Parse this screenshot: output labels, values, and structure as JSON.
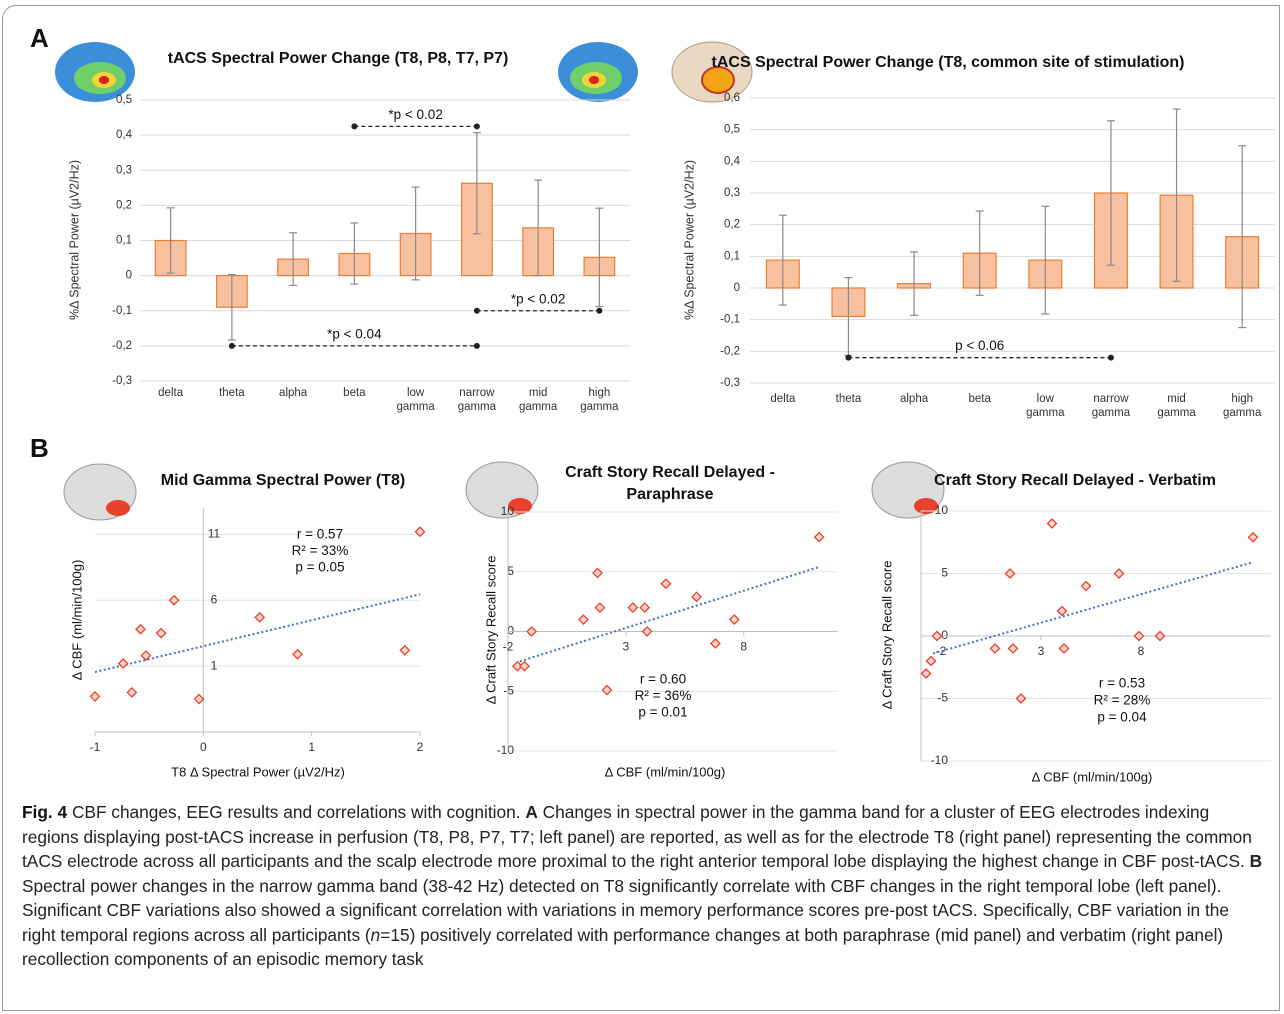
{
  "panel_labels": [
    "A",
    "B"
  ],
  "chart_data": [
    {
      "type": "bar",
      "title": "tACS Spectral Power Change (T8, P8, T7, P7)",
      "y_label": "%Δ Spectral Power (µV2/Hz)",
      "categories": [
        "delta",
        "theta",
        "alpha",
        "beta",
        "low gamma",
        "narrow gamma",
        "mid gamma",
        "high gamma"
      ],
      "values": [
        0.1,
        -0.09,
        0.047,
        0.063,
        0.12,
        0.263,
        0.136,
        0.052
      ],
      "errors": [
        0.093,
        0.093,
        0.075,
        0.087,
        0.132,
        0.144,
        0.136,
        0.14
      ],
      "color": "#f7c1a0",
      "edge_color": "#ed7d31",
      "ylim": [
        -0.3,
        0.5
      ],
      "yticks": [
        {
          "value": -0.3,
          "label": "-0,3"
        },
        {
          "value": -0.2,
          "label": "-0,2"
        },
        {
          "value": -0.1,
          "label": "-0,1"
        },
        0,
        {
          "value": 0.1,
          "label": "0,1"
        },
        {
          "value": 0.2,
          "label": "0,2"
        },
        {
          "value": 0.3,
          "label": "0,3"
        },
        {
          "value": 0.4,
          "label": "0,4"
        },
        {
          "value": 0.5,
          "label": "0,5"
        }
      ],
      "grid": true,
      "annotations": [
        {
          "text": "*p < 0.02",
          "between": [
            3,
            5
          ],
          "y": 0.425
        },
        {
          "text": "*p < 0.02",
          "between": [
            5,
            7
          ],
          "y": -0.1
        },
        {
          "text": "*p < 0.04",
          "between": [
            1,
            5
          ],
          "y": -0.2
        }
      ]
    },
    {
      "type": "bar",
      "title": "tACS Spectral Power Change (T8, common site of stimulation)",
      "y_label": "%Δ Spectral Power (µV2/Hz)",
      "categories": [
        "delta",
        "theta",
        "alpha",
        "beta",
        "low gamma",
        "narrow gamma",
        "mid gamma",
        "high gamma"
      ],
      "values": [
        0.088,
        -0.09,
        0.014,
        0.11,
        0.088,
        0.3,
        0.293,
        0.162
      ],
      "errors": [
        0.142,
        0.123,
        0.1,
        0.133,
        0.17,
        0.228,
        0.272,
        0.287
      ],
      "color": "#f7c1a0",
      "edge_color": "#ed7d31",
      "ylim": [
        -0.3,
        0.6
      ],
      "yticks": [
        {
          "value": -0.3,
          "label": "-0,3"
        },
        {
          "value": -0.2,
          "label": "-0,2"
        },
        {
          "value": -0.1,
          "label": "-0,1"
        },
        0,
        {
          "value": 0.1,
          "label": "0,1"
        },
        {
          "value": 0.2,
          "label": "0,2"
        },
        {
          "value": 0.3,
          "label": "0,3"
        },
        {
          "value": 0.4,
          "label": "0,4"
        },
        {
          "value": 0.5,
          "label": "0,5"
        },
        {
          "value": 0.6,
          "label": "0,6"
        }
      ],
      "grid": true,
      "annotations": [
        {
          "text": "p < 0.06",
          "between": [
            1,
            5
          ],
          "y": -0.22
        }
      ]
    },
    {
      "type": "scatter",
      "title": "Mid Gamma Spectral Power (T8)",
      "x_label": "T8 Δ Spectral Power (µV2/Hz)",
      "y_label": "Δ CBF (ml/min/100g)",
      "x": [
        -1.0,
        -0.74,
        -0.66,
        -0.58,
        -0.53,
        -0.39,
        -0.27,
        -0.04,
        0.52,
        0.87,
        1.86,
        2.0
      ],
      "values": [
        -1.3,
        1.2,
        -1.0,
        3.8,
        1.8,
        3.5,
        6.0,
        -1.5,
        4.7,
        1.9,
        2.2,
        11.2
      ],
      "trend": {
        "x": [
          -1,
          2
        ],
        "values": [
          0.55,
          6.45
        ]
      },
      "stats": [
        "r = 0.57",
        "R² = 33%",
        "p = 0.05"
      ],
      "xlim": [
        -1,
        2
      ],
      "xticks": [
        -1,
        0,
        1,
        2
      ],
      "ylim": [
        -4,
        13
      ],
      "yticks": [
        1,
        6,
        11
      ],
      "cross_x": 0,
      "grid": true,
      "color": "#e8412c",
      "trend_color": "#4472c4"
    },
    {
      "type": "scatter",
      "title": "Craft Story Recall Delayed - Paraphrase",
      "x_label": "Δ CBF (ml/min/100g)",
      "y_label": "Δ Craft Story Recall score",
      "x": [
        -1.6,
        -1.3,
        -1.0,
        1.2,
        1.8,
        1.9,
        2.2,
        3.3,
        3.8,
        3.9,
        4.7,
        6.0,
        6.8,
        7.6,
        11.2
      ],
      "values": [
        -2.9,
        -2.9,
        0,
        1.0,
        4.9,
        2.0,
        -4.9,
        2.0,
        2.0,
        0,
        4.0,
        2.9,
        -1.0,
        1.0,
        7.9
      ],
      "trend": {
        "x": [
          -1.5,
          11.2
        ],
        "values": [
          -2.5,
          5.4
        ]
      },
      "stats": [
        "r = 0.60",
        "R² = 36%",
        "p = 0.01"
      ],
      "xlim": [
        -2,
        12
      ],
      "xticks": [
        -2,
        3,
        8
      ],
      "ylim": [
        -10,
        10
      ],
      "yticks": [
        -10,
        -5,
        0,
        5,
        10
      ],
      "cross_y": 0,
      "grid": true,
      "color": "#e8412c",
      "trend_color": "#4472c4"
    },
    {
      "type": "scatter",
      "title": "Craft Story Recall Delayed - Verbatim",
      "x_label": "Δ CBF (ml/min/100g)",
      "y_label": "Δ Craft Story Recall score",
      "x": [
        -2.75,
        -2.5,
        -2.2,
        0.7,
        1.45,
        1.6,
        2.0,
        3.55,
        4.05,
        4.15,
        5.25,
        6.9,
        7.9,
        8.95,
        13.6
      ],
      "values": [
        -3.0,
        -2.0,
        0,
        -1.0,
        5.0,
        -1.0,
        -5.0,
        9.0,
        2.0,
        -1.0,
        4.0,
        5.0,
        0,
        0,
        7.9
      ],
      "trend": {
        "x": [
          -2.4,
          13.6
        ],
        "values": [
          -1.4,
          5.9
        ]
      },
      "stats": [
        "r = 0.53",
        "R² = 28%",
        "p = 0.04"
      ],
      "xlim": [
        -3,
        14.5
      ],
      "xticks": [
        -2,
        3,
        8
      ],
      "ylim": [
        -10,
        10
      ],
      "yticks": [
        -10,
        -5,
        0,
        5,
        10
      ],
      "cross_y": 0,
      "grid": true,
      "color": "#e8412c",
      "trend_color": "#4472c4"
    }
  ],
  "caption": [
    "Fig. 4",
    "  CBF changes, EEG results and correlations with cognition. ",
    "A",
    " Changes in spectral power in the gamma band for a cluster of EEG electrodes indexing regions displaying post-tACS increase in perfusion (T8, P8, P7, T7; left panel) are reported, as well as for the electrode T8 (right panel) representing the common tACS electrode across all participants and the scalp electrode more proximal to the right anterior temporal lobe displaying the highest change in CBF post-tACS. ",
    "B",
    " Spectral power changes in the narrow gamma band (38-42 Hz) detected on T8 significantly correlate with CBF changes in the right temporal lobe (left panel). Significant CBF variations also showed a significant correlation with variations in memory performance scores pre-post tACS. Specifically, CBF variation in the right temporal regions across all participants (",
    "n",
    "=15) positively correlated with performance changes at both paraphrase (mid panel) and verbatim (right panel) recollection components of an episodic memory task"
  ]
}
